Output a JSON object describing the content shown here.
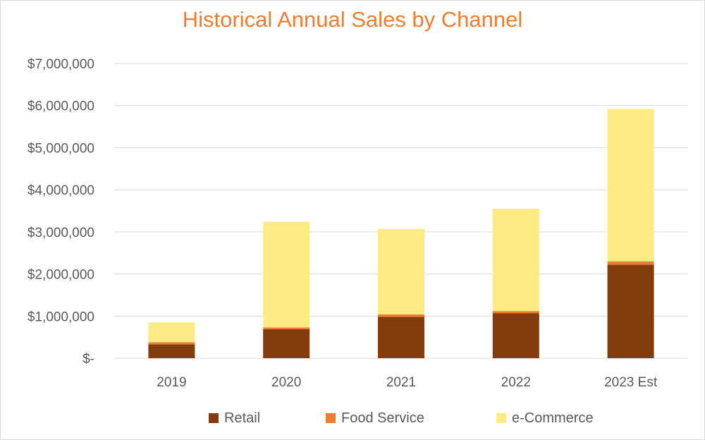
{
  "chart_data": {
    "type": "bar",
    "stacked": true,
    "title": "Historical Annual Sales by Channel",
    "categories": [
      "2019",
      "2020",
      "2021",
      "2022",
      "2023 Est"
    ],
    "series": [
      {
        "name": "Retail",
        "color": "#843c0c",
        "values": [
          330000,
          690000,
          980000,
          1070000,
          2220000
        ]
      },
      {
        "name": "Food Service",
        "color": "#ed7d31",
        "values": [
          50000,
          40000,
          60000,
          50000,
          80000
        ]
      },
      {
        "name": "e-Commerce",
        "color": "#ffeb84",
        "values": [
          470000,
          2510000,
          2030000,
          2430000,
          3620000
        ]
      }
    ],
    "ylim": [
      0,
      7000000
    ],
    "yticks": [
      0,
      1000000,
      2000000,
      3000000,
      4000000,
      5000000,
      6000000,
      7000000
    ],
    "ytick_labels": [
      "$-",
      "$1,000,000",
      "$2,000,000",
      "$3,000,000",
      "$4,000,000",
      "$5,000,000",
      "$6,000,000",
      "$7,000,000"
    ],
    "grid": true,
    "legend_position": "bottom"
  }
}
